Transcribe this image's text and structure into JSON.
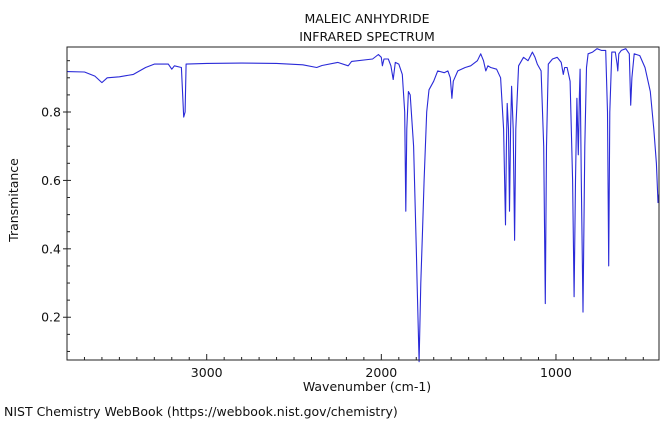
{
  "chart_data": {
    "type": "line",
    "title": "MALEIC ANHYDRIDE",
    "subtitle": "INFRARED SPECTRUM",
    "xlabel": "Wavenumber (cm-1)",
    "ylabel": "Transmitance",
    "xlim": [
      3800,
      410
    ],
    "ylim": [
      0.075,
      0.99
    ],
    "x_reversed": true,
    "grid": false,
    "x_ticks": [
      3000,
      2000,
      1000
    ],
    "x_tick_labels": [
      "3000",
      "2000",
      "1000"
    ],
    "y_ticks": [
      0.2,
      0.4,
      0.6,
      0.8
    ],
    "y_tick_labels": [
      "0.2",
      "0.4",
      "0.6",
      "0.8"
    ],
    "line_color": "#2a2ad8",
    "series": [
      {
        "points": [
          [
            3800,
            0.918
          ],
          [
            3700,
            0.917
          ],
          [
            3640,
            0.905
          ],
          [
            3600,
            0.886
          ],
          [
            3570,
            0.9
          ],
          [
            3500,
            0.903
          ],
          [
            3420,
            0.91
          ],
          [
            3350,
            0.93
          ],
          [
            3300,
            0.94
          ],
          [
            3220,
            0.94
          ],
          [
            3200,
            0.925
          ],
          [
            3185,
            0.935
          ],
          [
            3145,
            0.93
          ],
          [
            3132,
            0.785
          ],
          [
            3124,
            0.8
          ],
          [
            3118,
            0.94
          ],
          [
            3000,
            0.942
          ],
          [
            2800,
            0.943
          ],
          [
            2600,
            0.942
          ],
          [
            2450,
            0.938
          ],
          [
            2370,
            0.93
          ],
          [
            2340,
            0.936
          ],
          [
            2250,
            0.945
          ],
          [
            2190,
            0.935
          ],
          [
            2170,
            0.948
          ],
          [
            2050,
            0.955
          ],
          [
            2017,
            0.968
          ],
          [
            2000,
            0.96
          ],
          [
            1994,
            0.935
          ],
          [
            1985,
            0.955
          ],
          [
            1960,
            0.955
          ],
          [
            1945,
            0.935
          ],
          [
            1932,
            0.895
          ],
          [
            1920,
            0.945
          ],
          [
            1900,
            0.94
          ],
          [
            1880,
            0.91
          ],
          [
            1866,
            0.8
          ],
          [
            1860,
            0.51
          ],
          [
            1854,
            0.75
          ],
          [
            1845,
            0.86
          ],
          [
            1835,
            0.85
          ],
          [
            1815,
            0.7
          ],
          [
            1800,
            0.4
          ],
          [
            1795,
            0.3
          ],
          [
            1784,
            0.07
          ],
          [
            1774,
            0.3
          ],
          [
            1764,
            0.45
          ],
          [
            1755,
            0.6
          ],
          [
            1740,
            0.8
          ],
          [
            1727,
            0.865
          ],
          [
            1700,
            0.89
          ],
          [
            1677,
            0.92
          ],
          [
            1640,
            0.915
          ],
          [
            1619,
            0.92
          ],
          [
            1605,
            0.9
          ],
          [
            1596,
            0.84
          ],
          [
            1588,
            0.89
          ],
          [
            1562,
            0.92
          ],
          [
            1520,
            0.93
          ],
          [
            1488,
            0.935
          ],
          [
            1450,
            0.95
          ],
          [
            1431,
            0.97
          ],
          [
            1415,
            0.95
          ],
          [
            1402,
            0.92
          ],
          [
            1390,
            0.935
          ],
          [
            1374,
            0.93
          ],
          [
            1340,
            0.925
          ],
          [
            1317,
            0.9
          ],
          [
            1300,
            0.75
          ],
          [
            1289,
            0.47
          ],
          [
            1284,
            0.7
          ],
          [
            1279,
            0.825
          ],
          [
            1272,
            0.75
          ],
          [
            1266,
            0.51
          ],
          [
            1260,
            0.75
          ],
          [
            1254,
            0.875
          ],
          [
            1245,
            0.75
          ],
          [
            1237,
            0.425
          ],
          [
            1230,
            0.75
          ],
          [
            1214,
            0.935
          ],
          [
            1186,
            0.96
          ],
          [
            1160,
            0.95
          ],
          [
            1135,
            0.975
          ],
          [
            1120,
            0.96
          ],
          [
            1107,
            0.94
          ],
          [
            1085,
            0.92
          ],
          [
            1070,
            0.7
          ],
          [
            1061,
            0.24
          ],
          [
            1054,
            0.7
          ],
          [
            1044,
            0.94
          ],
          [
            1020,
            0.955
          ],
          [
            993,
            0.96
          ],
          [
            970,
            0.945
          ],
          [
            958,
            0.91
          ],
          [
            950,
            0.93
          ],
          [
            936,
            0.93
          ],
          [
            919,
            0.89
          ],
          [
            905,
            0.6
          ],
          [
            896,
            0.26
          ],
          [
            888,
            0.6
          ],
          [
            880,
            0.84
          ],
          [
            872,
            0.675
          ],
          [
            866,
            0.85
          ],
          [
            862,
            0.925
          ],
          [
            855,
            0.6
          ],
          [
            845,
            0.215
          ],
          [
            835,
            0.7
          ],
          [
            825,
            0.93
          ],
          [
            816,
            0.97
          ],
          [
            790,
            0.975
          ],
          [
            765,
            0.985
          ],
          [
            740,
            0.98
          ],
          [
            715,
            0.98
          ],
          [
            705,
            0.8
          ],
          [
            698,
            0.35
          ],
          [
            692,
            0.8
          ],
          [
            680,
            0.975
          ],
          [
            660,
            0.975
          ],
          [
            650,
            0.94
          ],
          [
            646,
            0.92
          ],
          [
            640,
            0.97
          ],
          [
            626,
            0.98
          ],
          [
            600,
            0.985
          ],
          [
            580,
            0.97
          ],
          [
            572,
            0.82
          ],
          [
            565,
            0.9
          ],
          [
            552,
            0.97
          ],
          [
            520,
            0.965
          ],
          [
            490,
            0.93
          ],
          [
            460,
            0.86
          ],
          [
            440,
            0.75
          ],
          [
            425,
            0.65
          ],
          [
            416,
            0.535
          ],
          [
            410,
            0.56
          ]
        ]
      }
    ]
  },
  "footer": "NIST Chemistry WebBook (https://webbook.nist.gov/chemistry)"
}
